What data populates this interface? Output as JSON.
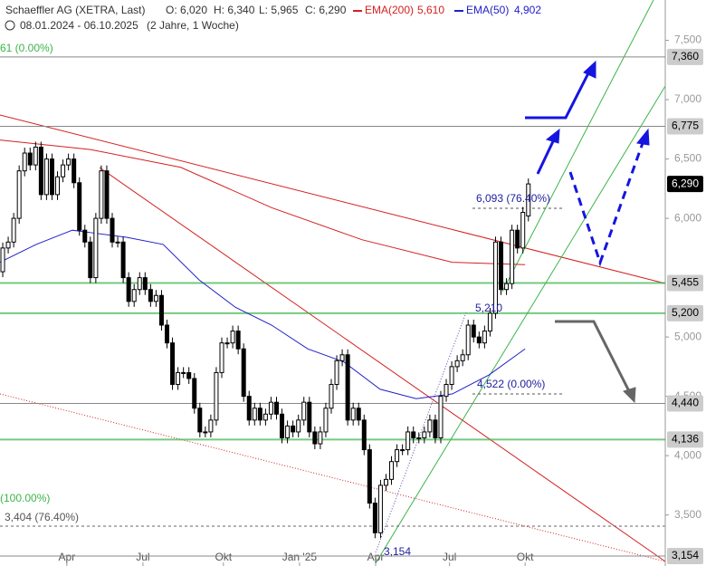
{
  "chart_data": {
    "type": "candlestick",
    "title": "Schaeffler AG (XETRA, Last)",
    "ohlc_labels": [
      "O: 6,020",
      "H: 6,340",
      "L: 5,965",
      "C: 6,290"
    ],
    "period": "08.01.2024 - 06.10.2025",
    "period_note": "(2 Jahre, 1 Woche)",
    "open": [
      5.55,
      5.75,
      5.8,
      6.0,
      6.4,
      6.55,
      6.45,
      6.6,
      6.2,
      6.5,
      6.2,
      6.35,
      6.45,
      6.5,
      6.3,
      5.9,
      5.8,
      5.5,
      6.0,
      6.4,
      6.0,
      5.8,
      5.8,
      5.5,
      5.3,
      5.4,
      5.5,
      5.4,
      5.3,
      5.35,
      5.1,
      4.95,
      4.6,
      4.7,
      4.7,
      4.65,
      4.4,
      4.2,
      4.2,
      4.3,
      4.7,
      4.95,
      4.95,
      5.05,
      4.9,
      4.5,
      4.3,
      4.4,
      4.3,
      4.35,
      4.45,
      4.35,
      4.15,
      4.25,
      4.2,
      4.3,
      4.45,
      4.2,
      4.1,
      4.2,
      4.4,
      4.6,
      4.8,
      4.85,
      4.3,
      4.4,
      4.3,
      4.05,
      3.6,
      3.35,
      3.75,
      3.8,
      3.95,
      4.05,
      4.05,
      4.2,
      4.15,
      4.15,
      4.2,
      4.3,
      4.15,
      4.5,
      4.6,
      4.75,
      4.8,
      4.85,
      5.1,
      5.0,
      4.95,
      5.05,
      5.2,
      5.8,
      5.4,
      5.45,
      5.9,
      5.75,
      6.02
    ],
    "close": [
      5.75,
      5.8,
      6.0,
      6.4,
      6.55,
      6.45,
      6.6,
      6.2,
      6.5,
      6.2,
      6.35,
      6.45,
      6.5,
      6.3,
      5.9,
      5.8,
      5.5,
      6.0,
      6.4,
      6.0,
      5.8,
      5.8,
      5.5,
      5.3,
      5.4,
      5.5,
      5.4,
      5.3,
      5.35,
      5.1,
      4.95,
      4.6,
      4.7,
      4.7,
      4.65,
      4.4,
      4.2,
      4.2,
      4.3,
      4.7,
      4.95,
      4.95,
      5.05,
      4.9,
      4.5,
      4.3,
      4.4,
      4.3,
      4.35,
      4.45,
      4.35,
      4.15,
      4.25,
      4.2,
      4.3,
      4.45,
      4.2,
      4.1,
      4.2,
      4.4,
      4.6,
      4.8,
      4.85,
      4.3,
      4.4,
      4.3,
      4.05,
      3.6,
      3.35,
      3.75,
      3.8,
      3.95,
      4.05,
      4.05,
      4.2,
      4.15,
      4.15,
      4.2,
      4.3,
      4.15,
      4.5,
      4.6,
      4.75,
      4.8,
      4.85,
      5.1,
      5.0,
      4.95,
      5.05,
      5.2,
      5.8,
      5.4,
      5.45,
      5.9,
      5.75,
      6.05,
      6.29
    ],
    "series": [
      {
        "name": "EMA(200)",
        "value_label": "5,610",
        "color": "#d42020",
        "x": [
          0,
          16.5,
          33,
          49.6,
          66.1,
          82.6,
          95.9
        ],
        "values": [
          6.66,
          6.58,
          6.43,
          6.09,
          5.82,
          5.63,
          5.61
        ]
      },
      {
        "name": "EMA(50)",
        "value_label": "4,902",
        "color": "#2020c8",
        "x": [
          0,
          6.6,
          13.2,
          16.5,
          23.1,
          29.8,
          36.4,
          43,
          49.6,
          56.2,
          62.8,
          69.4,
          76,
          82.6,
          89.3,
          95.9
        ],
        "values": [
          5.63,
          5.78,
          5.9,
          5.88,
          5.84,
          5.78,
          5.48,
          5.25,
          5.1,
          4.9,
          4.79,
          4.56,
          4.48,
          4.52,
          4.68,
          4.9
        ]
      }
    ],
    "levels": [
      {
        "value": 7.36,
        "label": "7,360",
        "color": "#888888"
      },
      {
        "value": 6.775,
        "label": "6,775",
        "color": "#888888"
      },
      {
        "value": 6.29,
        "label": "6,290",
        "color": "#000000"
      },
      {
        "value": 5.455,
        "label": "5,455",
        "color": "#3cb44b"
      },
      {
        "value": 5.2,
        "label": "5,200",
        "color": "#3cb44b"
      },
      {
        "value": 4.44,
        "label": "4,440",
        "color": "#888888"
      },
      {
        "value": 4.136,
        "label": "4,136",
        "color": "#3cb44b"
      },
      {
        "value": 3.154,
        "label": "3,154",
        "color": "#888888"
      }
    ],
    "annotations": [
      "6,093 (76.40%)",
      "5,210",
      "4,522 (0.00%)",
      "3,154",
      "61 (0.00%)",
      "(100.00%)",
      "3,404 (76.40%)"
    ],
    "xlim": [
      0,
      121.5
    ],
    "ylim": [
      3.07,
      7.84
    ],
    "xticks": [
      {
        "value": 12.2,
        "label": "Apr"
      },
      {
        "value": 26.1,
        "label": "Jul"
      },
      {
        "value": 40.8,
        "label": "Okt"
      },
      {
        "value": 54.7,
        "label": "Jan '25"
      },
      {
        "value": 68.6,
        "label": "Apr"
      },
      {
        "value": 82.1,
        "label": "Jul"
      },
      {
        "value": 95.9,
        "label": "Okt"
      }
    ],
    "yticks": [
      {
        "value": 7.5,
        "label": "7,500"
      },
      {
        "value": 7.0,
        "label": "7,000"
      },
      {
        "value": 6.5,
        "label": "6,500"
      },
      {
        "value": 6.0,
        "label": "6,000"
      },
      {
        "value": 5.0,
        "label": "5,000"
      },
      {
        "value": 4.5,
        "label": "4,500"
      },
      {
        "value": 4.0,
        "label": "4,000"
      },
      {
        "value": 3.5,
        "label": "3,500"
      }
    ]
  }
}
